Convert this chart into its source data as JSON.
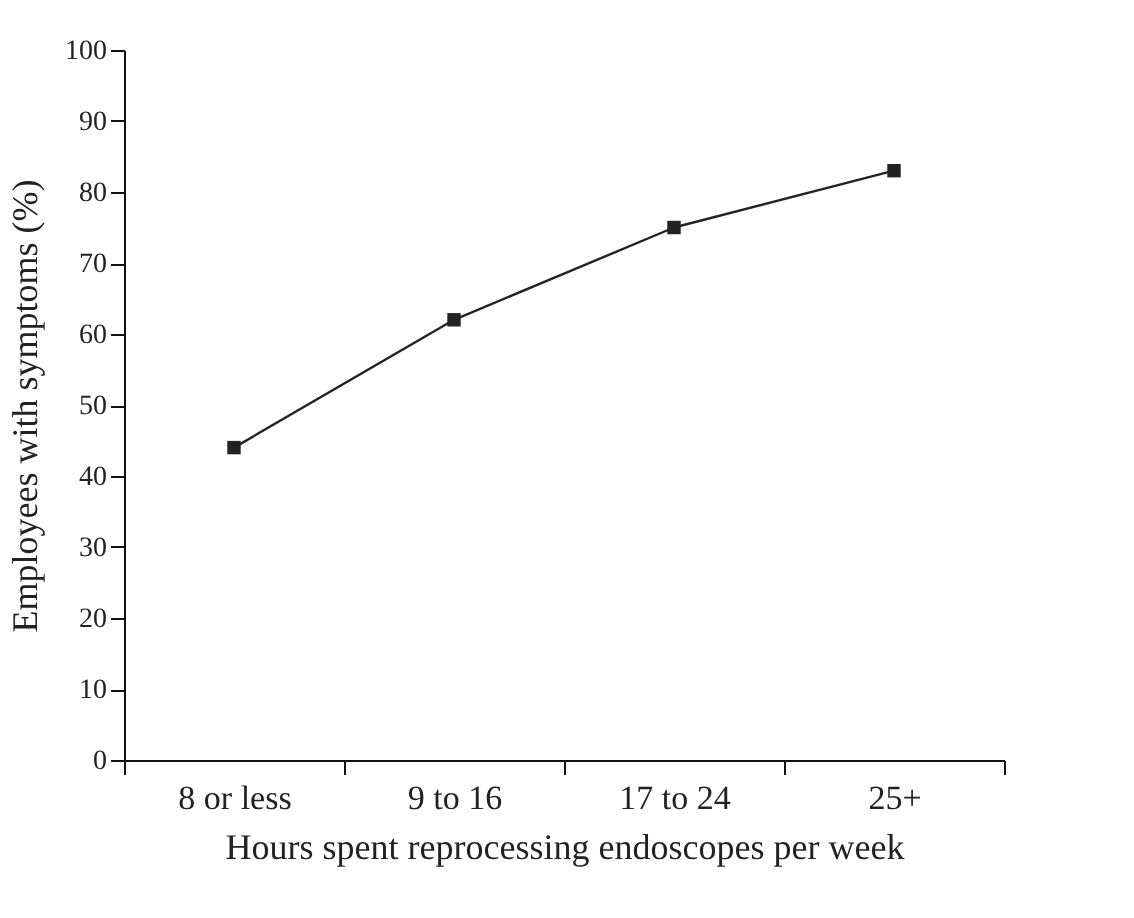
{
  "chart_data": {
    "type": "line",
    "xlabel": "Hours spent reprocessing endoscopes per week",
    "ylabel": "Employees with symptoms (%)",
    "categories": [
      "8 or less",
      "9 to 16",
      "17 to 24",
      "25+"
    ],
    "series": [
      {
        "color": "#222222",
        "values": [
          44,
          62,
          75,
          83
        ]
      }
    ],
    "ylim": [
      0,
      100
    ],
    "yticks": [
      0,
      10,
      20,
      30,
      40,
      50,
      60,
      70,
      80,
      90,
      100
    ],
    "marker": "square",
    "grid": false,
    "legend": false
  }
}
